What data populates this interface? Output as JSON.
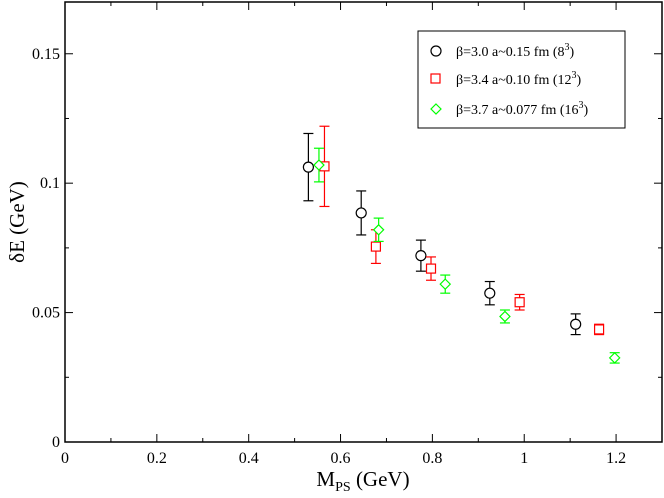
{
  "chart_data": {
    "type": "scatter",
    "title": "",
    "xlabel": {
      "main": "M",
      "sub": "PS",
      "rest": " (GeV)"
    },
    "ylabel": "δE (GeV)",
    "xlim": [
      0,
      1.3
    ],
    "ylim": [
      0,
      0.17
    ],
    "xticks": [
      0,
      0.2,
      0.4,
      0.6,
      0.8,
      1.0,
      1.2
    ],
    "xtick_labels": [
      "0",
      "0.2",
      "0.4",
      "0.6",
      "0.8",
      "1",
      "1.2"
    ],
    "yticks": [
      0,
      0.05,
      0.1,
      0.15
    ],
    "ytick_labels": [
      "0",
      "0.05",
      "0.1",
      "0.15"
    ],
    "legend_position": "top-right",
    "series": [
      {
        "name": "β=3.0 a~0.15 fm (8³)",
        "label_main": "β=3.0 a~0.15 fm (8",
        "label_sup": "3",
        "label_end": ")",
        "marker": "circle",
        "color": "#000000",
        "points": [
          {
            "x": 0.53,
            "y": 0.1062,
            "err": 0.013
          },
          {
            "x": 0.645,
            "y": 0.0885,
            "err": 0.0085
          },
          {
            "x": 0.775,
            "y": 0.072,
            "err": 0.006
          },
          {
            "x": 0.925,
            "y": 0.0575,
            "err": 0.0045
          },
          {
            "x": 1.112,
            "y": 0.0455,
            "err": 0.004
          }
        ]
      },
      {
        "name": "β=3.4 a~0.10 fm (12³)",
        "label_main": "β=3.4 a~0.10 fm (12",
        "label_sup": "3",
        "label_end": ")",
        "marker": "square",
        "color": "#ff0000",
        "points": [
          {
            "x": 0.565,
            "y": 0.1065,
            "err": 0.0155
          },
          {
            "x": 0.677,
            "y": 0.0755,
            "err": 0.0065
          },
          {
            "x": 0.797,
            "y": 0.067,
            "err": 0.0045
          },
          {
            "x": 0.99,
            "y": 0.054,
            "err": 0.003
          },
          {
            "x": 1.163,
            "y": 0.0435,
            "err": 0.002
          }
        ]
      },
      {
        "name": "β=3.7 a~0.077 fm (16³)",
        "label_main": "β=3.7 a~0.077 fm (16",
        "label_sup": "3",
        "label_end": ")",
        "marker": "diamond",
        "color": "#00ff00",
        "points": [
          {
            "x": 0.553,
            "y": 0.107,
            "err": 0.0065
          },
          {
            "x": 0.683,
            "y": 0.082,
            "err": 0.0045
          },
          {
            "x": 0.828,
            "y": 0.061,
            "err": 0.0035
          },
          {
            "x": 0.958,
            "y": 0.0485,
            "err": 0.0025
          },
          {
            "x": 1.197,
            "y": 0.0325,
            "err": 0.002
          }
        ]
      }
    ]
  }
}
